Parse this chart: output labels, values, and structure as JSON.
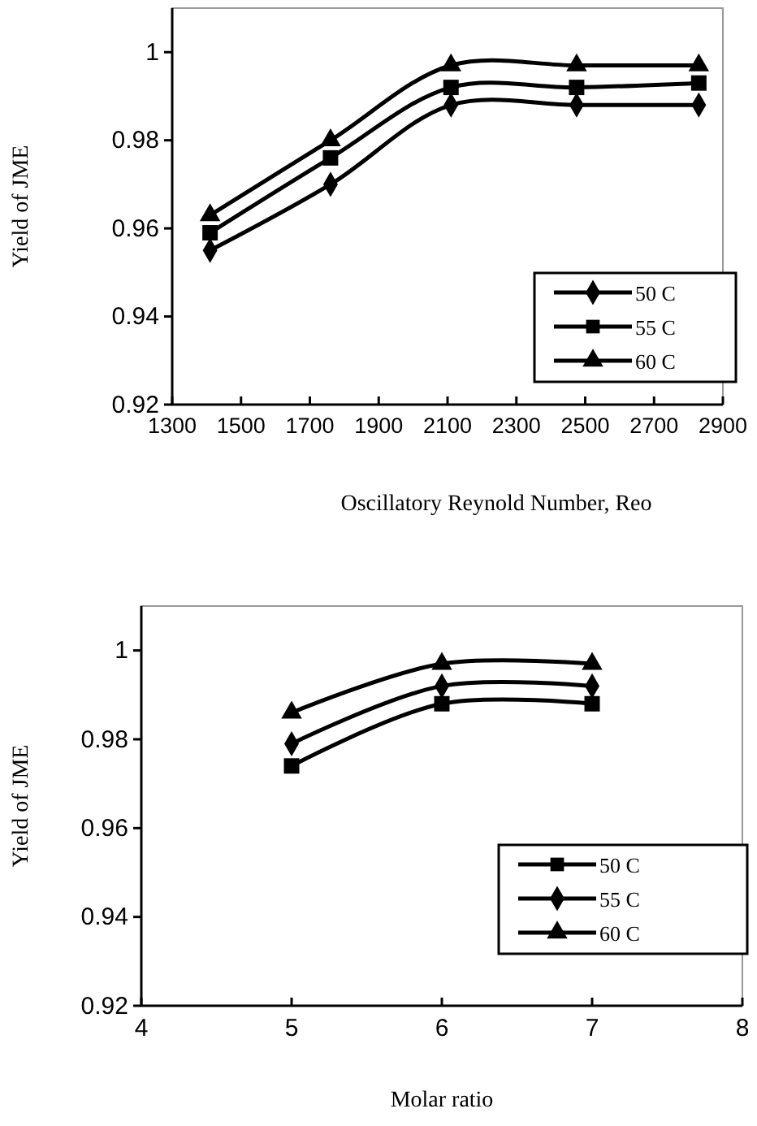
{
  "chart_data": [
    {
      "type": "line",
      "xlabel": "Oscillatory Reynold Number, Reo",
      "ylabel": "Yield of JME",
      "xlim": [
        1300,
        2900
      ],
      "xticks": [
        1300,
        1500,
        1700,
        1900,
        2100,
        2300,
        2500,
        2700,
        2900
      ],
      "ylim": [
        0.92,
        1.01
      ],
      "yticks": [
        0.92,
        0.94,
        0.96,
        0.98,
        {
          "value": 1,
          "label": "1"
        }
      ],
      "grid": false,
      "legend": "bottom right",
      "line_style": "solid",
      "series": [
        {
          "name": "50 C",
          "color": "#000000",
          "marker": "diamond",
          "x": [
            1410,
            1760,
            2110,
            2475,
            2830
          ],
          "values": [
            0.955,
            0.97,
            0.988,
            0.988,
            0.988
          ]
        },
        {
          "name": "55 C",
          "color": "#000000",
          "marker": "square",
          "x": [
            1410,
            1760,
            2110,
            2475,
            2830
          ],
          "values": [
            0.959,
            0.976,
            0.992,
            0.992,
            0.993
          ]
        },
        {
          "name": "60 C",
          "color": "#000000",
          "marker": "triangle",
          "x": [
            1410,
            1760,
            2110,
            2475,
            2830
          ],
          "values": [
            0.963,
            0.98,
            0.997,
            0.997,
            0.997
          ]
        }
      ]
    },
    {
      "type": "line",
      "xlabel": "Molar ratio",
      "ylabel": "Yield of JME",
      "xlim": [
        4,
        8
      ],
      "xticks": [
        4,
        5,
        6,
        7,
        8
      ],
      "ylim": [
        0.92,
        1.01
      ],
      "yticks": [
        0.92,
        0.94,
        0.96,
        0.98,
        {
          "value": 1,
          "label": "1"
        }
      ],
      "grid": false,
      "legend": "bottom right",
      "line_style": "solid",
      "series": [
        {
          "name": "50 C",
          "color": "#000000",
          "marker": "square",
          "x": [
            5,
            6,
            7
          ],
          "values": [
            0.974,
            0.988,
            0.988
          ]
        },
        {
          "name": "55 C",
          "color": "#000000",
          "marker": "diamond",
          "x": [
            5,
            6,
            7
          ],
          "values": [
            0.979,
            0.992,
            0.992
          ]
        },
        {
          "name": "60 C",
          "color": "#000000",
          "marker": "triangle",
          "x": [
            5,
            6,
            7
          ],
          "values": [
            0.986,
            0.997,
            0.997
          ]
        }
      ]
    }
  ]
}
